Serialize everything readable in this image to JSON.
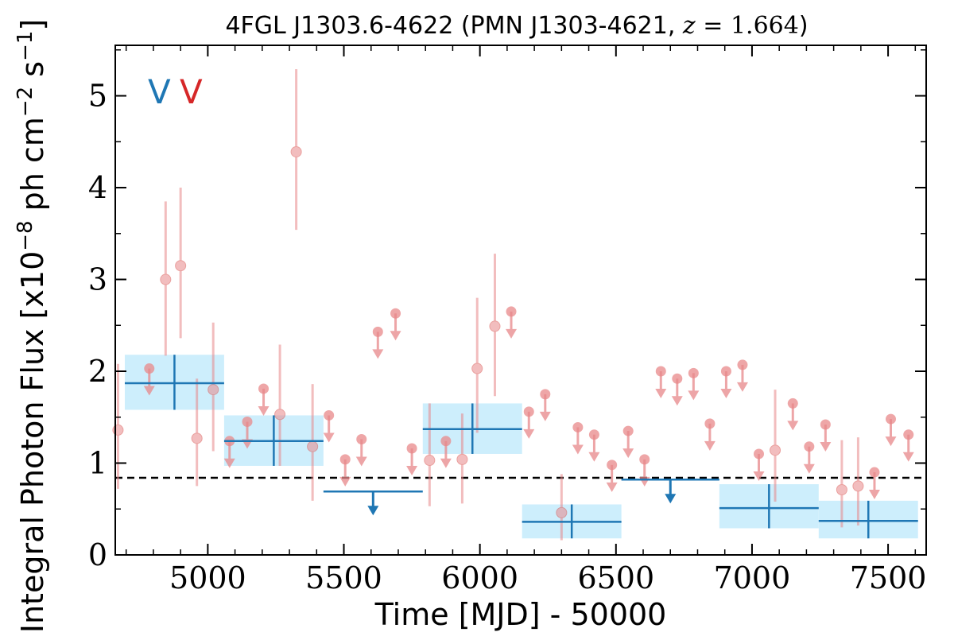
{
  "chart_data": {
    "type": "scatter",
    "title": "4FGL J1303.6-4622 (PMN J1303-4621, ",
    "title_math_var": "z",
    "title_math_eq": " = 1.664",
    "title_close": ")",
    "xlabel": "Time [MJD] - 50000",
    "ylabel": "Integral Photon Flux [x10",
    "ylabel_exp1": "−8",
    "ylabel_mid": " ph cm",
    "ylabel_exp2": "−2",
    "ylabel_mid2": " s",
    "ylabel_exp3": "−1",
    "ylabel_close": "]",
    "xlim": [
      4660,
      7640
    ],
    "ylim": [
      0,
      5.55
    ],
    "x_ticks": [
      5000,
      5500,
      6000,
      6500,
      7000,
      7500
    ],
    "x_tick_labels": [
      "5000",
      "5500",
      "6000",
      "6500",
      "7000",
      "7500"
    ],
    "y_ticks": [
      0,
      1,
      2,
      3,
      4,
      5
    ],
    "y_tick_labels": [
      "0",
      "1",
      "2",
      "3",
      "4",
      "5"
    ],
    "reference_line": 0.84,
    "colors": {
      "blue": "#1f77b4",
      "red": "#d62728",
      "red_marker": "#e8888a",
      "band": "#cdeefc",
      "axis": "#000000"
    },
    "legend_marks": [
      {
        "text": "V",
        "color": "#1f77b4"
      },
      {
        "text": "V",
        "color": "#d62728"
      }
    ],
    "series": [
      {
        "kind": "coarse_bins",
        "points": [
          {
            "x0": 4695,
            "x1": 5060,
            "y": 1.87,
            "ylo": 1.58,
            "yhi": 2.18
          },
          {
            "x0": 5060,
            "x1": 5425,
            "y": 1.24,
            "ylo": 0.97,
            "yhi": 1.52
          },
          {
            "x0": 5790,
            "x1": 6155,
            "y": 1.37,
            "ylo": 1.1,
            "yhi": 1.65
          },
          {
            "x0": 6155,
            "x1": 6520,
            "y": 0.36,
            "ylo": 0.18,
            "yhi": 0.55
          },
          {
            "x0": 6880,
            "x1": 7245,
            "y": 0.51,
            "ylo": 0.29,
            "yhi": 0.77
          },
          {
            "x0": 7245,
            "x1": 7610,
            "y": 0.37,
            "ylo": 0.18,
            "yhi": 0.59
          }
        ]
      },
      {
        "kind": "coarse_upper_limits",
        "points": [
          {
            "x0": 5425,
            "x1": 5790,
            "y": 0.69
          },
          {
            "x0": 6520,
            "x1": 6880,
            "y": 0.82
          }
        ]
      },
      {
        "kind": "fine_bins",
        "points": [
          {
            "x": 4670,
            "y": 1.36,
            "ylo": 0.72,
            "yhi": 2.08
          },
          {
            "x": 4845,
            "y": 3.0,
            "ylo": 2.17,
            "yhi": 3.85
          },
          {
            "x": 4900,
            "y": 3.15,
            "ylo": 2.36,
            "yhi": 4.0
          },
          {
            "x": 4960,
            "y": 1.27,
            "ylo": 0.75,
            "yhi": 1.92
          },
          {
            "x": 5020,
            "y": 1.8,
            "ylo": 1.13,
            "yhi": 2.53
          },
          {
            "x": 5265,
            "y": 1.53,
            "ylo": 0.97,
            "yhi": 2.29
          },
          {
            "x": 5325,
            "y": 4.39,
            "ylo": 3.54,
            "yhi": 5.29
          },
          {
            "x": 5385,
            "y": 1.18,
            "ylo": 0.59,
            "yhi": 1.86
          },
          {
            "x": 5815,
            "y": 1.03,
            "ylo": 0.53,
            "yhi": 1.65
          },
          {
            "x": 5935,
            "y": 1.04,
            "ylo": 0.56,
            "yhi": 1.54
          },
          {
            "x": 5990,
            "y": 2.03,
            "ylo": 1.33,
            "yhi": 2.8
          },
          {
            "x": 6055,
            "y": 2.49,
            "ylo": 1.73,
            "yhi": 3.28
          },
          {
            "x": 6300,
            "y": 0.46,
            "ylo": 0.16,
            "yhi": 0.88
          },
          {
            "x": 7085,
            "y": 1.14,
            "ylo": 0.58,
            "yhi": 1.8
          },
          {
            "x": 7330,
            "y": 0.71,
            "ylo": 0.3,
            "yhi": 1.25
          },
          {
            "x": 7390,
            "y": 0.75,
            "ylo": 0.32,
            "yhi": 1.28
          }
        ]
      },
      {
        "kind": "fine_upper_limits",
        "points": [
          {
            "x": 4785,
            "y": 2.03
          },
          {
            "x": 5080,
            "y": 1.24
          },
          {
            "x": 5145,
            "y": 1.45
          },
          {
            "x": 5205,
            "y": 1.81
          },
          {
            "x": 5445,
            "y": 1.52
          },
          {
            "x": 5505,
            "y": 1.04
          },
          {
            "x": 5565,
            "y": 1.26
          },
          {
            "x": 5625,
            "y": 2.43
          },
          {
            "x": 5690,
            "y": 2.63
          },
          {
            "x": 5750,
            "y": 1.16
          },
          {
            "x": 5875,
            "y": 1.24
          },
          {
            "x": 6115,
            "y": 2.65
          },
          {
            "x": 6180,
            "y": 1.56
          },
          {
            "x": 6240,
            "y": 1.75
          },
          {
            "x": 6360,
            "y": 1.39
          },
          {
            "x": 6420,
            "y": 1.31
          },
          {
            "x": 6485,
            "y": 0.98
          },
          {
            "x": 6545,
            "y": 1.35
          },
          {
            "x": 6605,
            "y": 1.04
          },
          {
            "x": 6665,
            "y": 2.0
          },
          {
            "x": 6725,
            "y": 1.92
          },
          {
            "x": 6785,
            "y": 1.98
          },
          {
            "x": 6845,
            "y": 1.43
          },
          {
            "x": 6905,
            "y": 2.0
          },
          {
            "x": 6965,
            "y": 2.07
          },
          {
            "x": 7025,
            "y": 1.1
          },
          {
            "x": 7150,
            "y": 1.65
          },
          {
            "x": 7210,
            "y": 1.18
          },
          {
            "x": 7270,
            "y": 1.42
          },
          {
            "x": 7450,
            "y": 0.9
          },
          {
            "x": 7510,
            "y": 1.48
          },
          {
            "x": 7575,
            "y": 1.31
          }
        ]
      }
    ]
  }
}
